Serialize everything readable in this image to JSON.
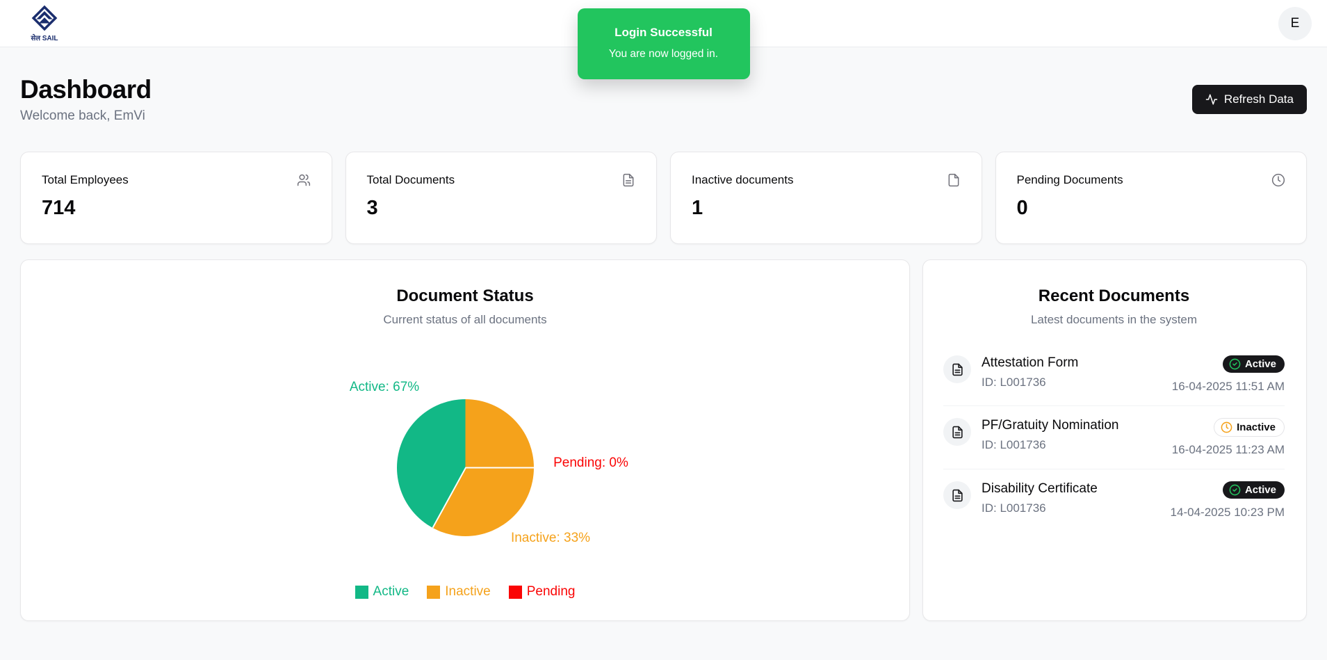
{
  "header": {
    "logo_caption": "सेल SAIL",
    "avatar_initial": "E"
  },
  "toast": {
    "title": "Login Successful",
    "message": "You are now logged in."
  },
  "page": {
    "title": "Dashboard",
    "subtitle": "Welcome back, EmVi",
    "refresh_button_label": "Refresh Data"
  },
  "stats": [
    {
      "label": "Total Employees",
      "value": "714",
      "icon": "users-icon"
    },
    {
      "label": "Total Documents",
      "value": "3",
      "icon": "file-text-icon"
    },
    {
      "label": "Inactive documents",
      "value": "1",
      "icon": "file-icon"
    },
    {
      "label": "Pending Documents",
      "value": "0",
      "icon": "clock-icon"
    }
  ],
  "chart_card": {
    "title": "Document Status",
    "subtitle": "Current status of all documents"
  },
  "chart_data": {
    "type": "pie",
    "title": "Document Status",
    "categories": [
      "Active",
      "Inactive",
      "Pending"
    ],
    "values": [
      67,
      33,
      0
    ],
    "unit": "%",
    "colors": {
      "Active": "#12b886",
      "Inactive": "#f5a21b",
      "Pending": "#fa0505"
    },
    "labels": [
      "Active: 67%",
      "Inactive: 33%",
      "Pending: 0%"
    ],
    "legend": [
      "Active",
      "Inactive",
      "Pending"
    ],
    "legend_position": "bottom",
    "draw_order": [
      1,
      2,
      0
    ],
    "rotation_deg": 90
  },
  "recent": {
    "title": "Recent Documents",
    "subtitle": "Latest documents in the system",
    "items": [
      {
        "name": "Attestation Form",
        "id": "ID: L001736",
        "status": "Active",
        "timestamp": "16-04-2025 11:51 AM"
      },
      {
        "name": "PF/Gratuity Nomination",
        "id": "ID: L001736",
        "status": "Inactive",
        "timestamp": "16-04-2025 11:23 AM"
      },
      {
        "name": "Disability Certificate",
        "id": "ID: L001736",
        "status": "Active",
        "timestamp": "14-04-2025 10:23 PM"
      }
    ]
  },
  "colors": {
    "toast_green": "#22c55e",
    "pie_active_green": "#12b886",
    "pie_inactive_orange": "#f5a21b",
    "pie_pending_red": "#fa0505",
    "button_dark": "#18181b",
    "page_background": "#f8f9fa",
    "logo_navy": "#1b2e6e"
  }
}
